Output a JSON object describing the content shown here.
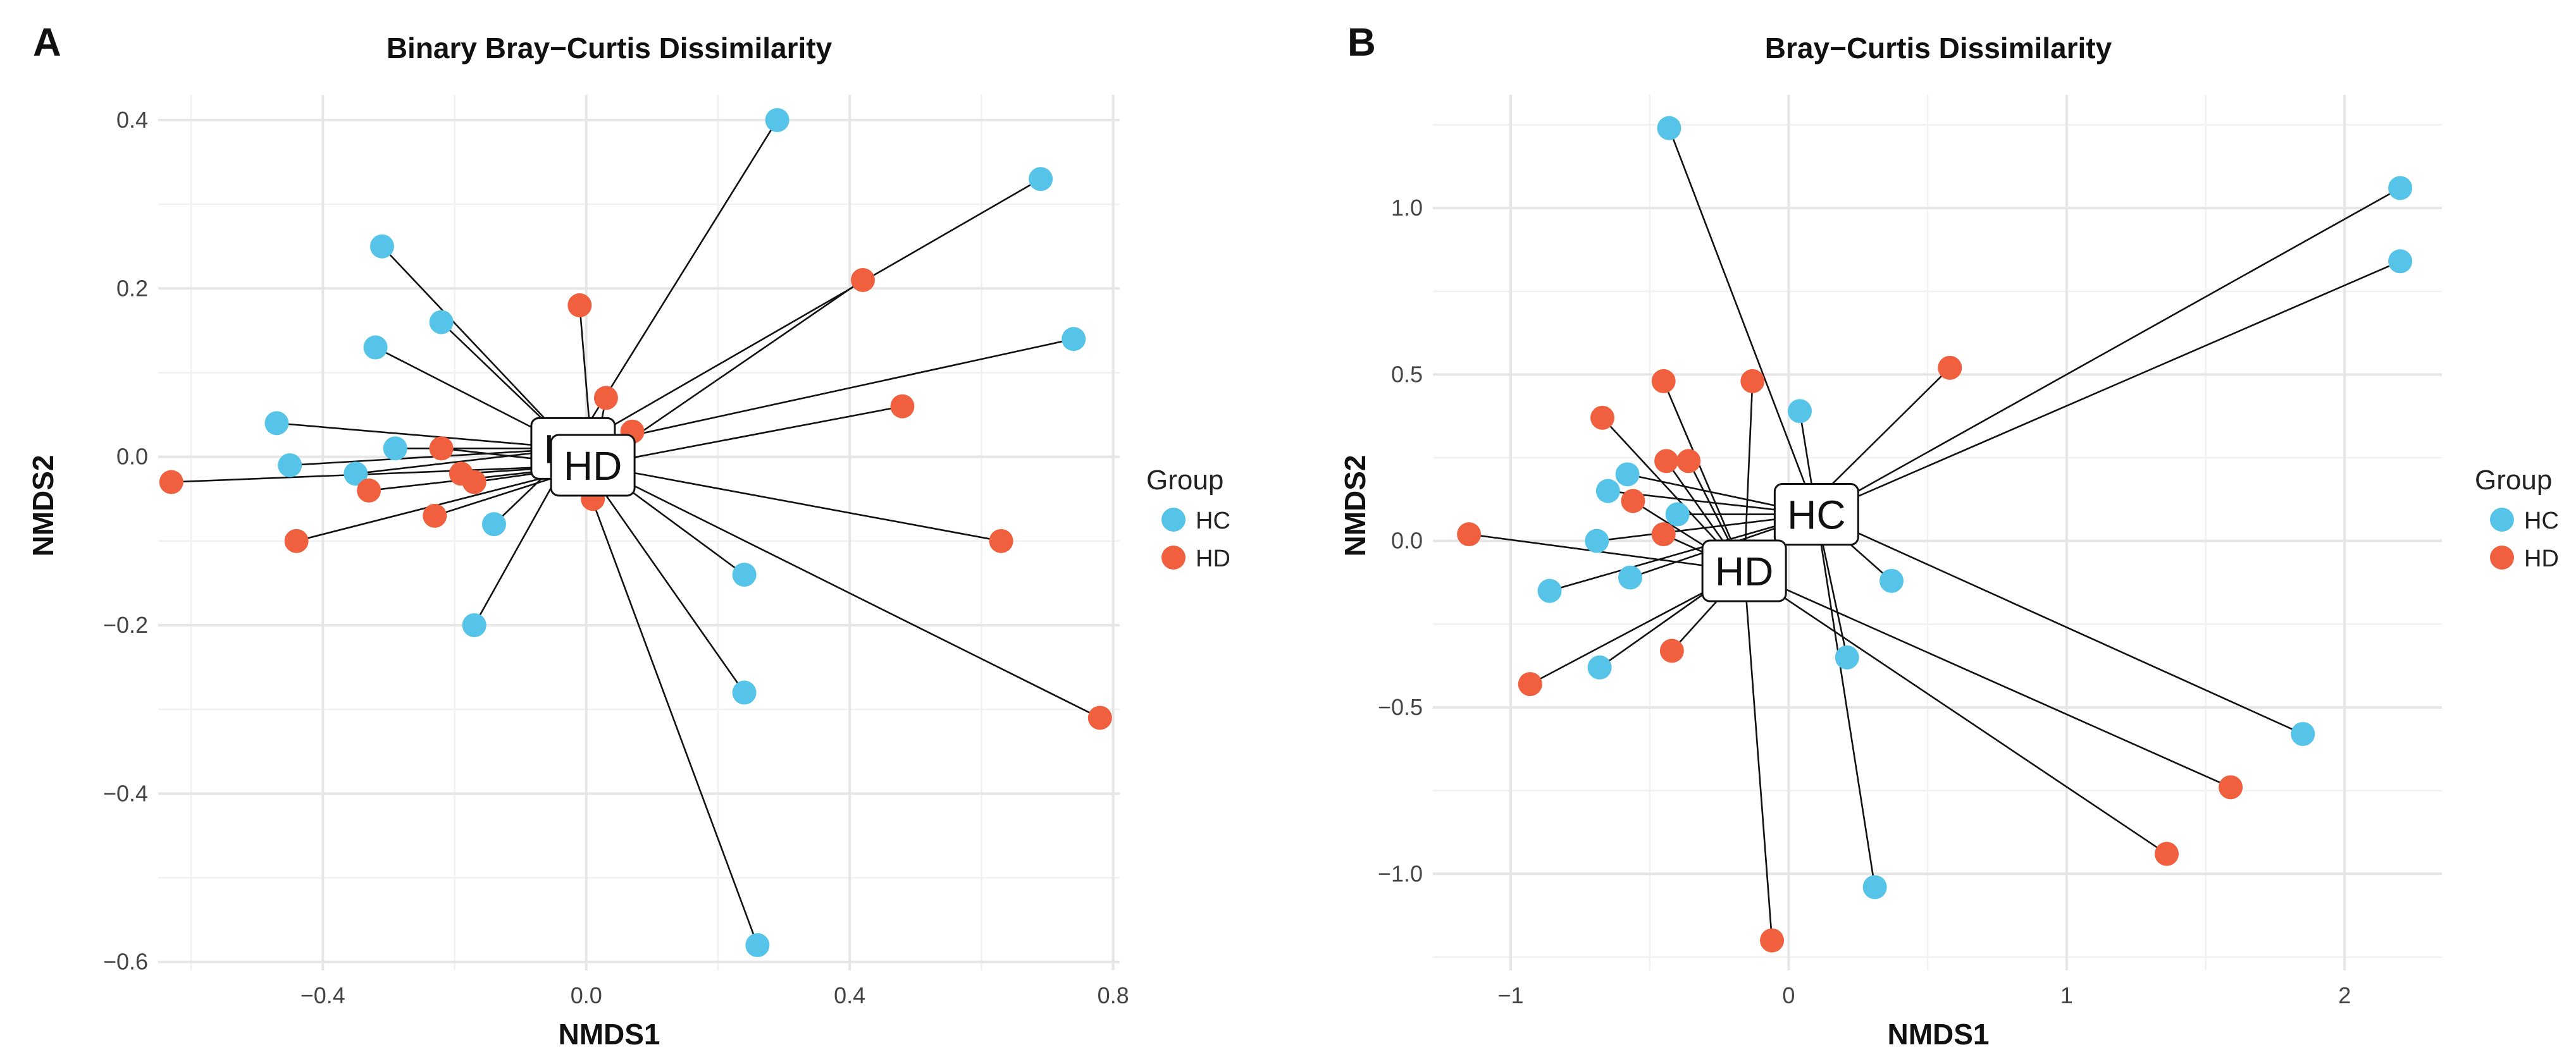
{
  "chart_data": [
    {
      "type": "scatter",
      "panel_label": "A",
      "title": "Binary Bray−Curtis Dissimilarity",
      "xlabel": "NMDS1",
      "ylabel": "NMDS2",
      "xlim": [
        -0.65,
        0.81
      ],
      "ylim": [
        -0.61,
        0.43
      ],
      "xticks": [
        -0.4,
        0.0,
        0.4,
        0.8
      ],
      "xtick_labels": [
        "−0.4",
        "0.0",
        "0.4",
        "0.8"
      ],
      "yticks": [
        -0.6,
        -0.4,
        -0.2,
        0.0,
        0.2,
        0.4
      ],
      "ytick_labels": [
        "−0.6",
        "−0.4",
        "−0.2",
        "0.0",
        "0.2",
        "0.4"
      ],
      "grid": true,
      "legend_title": "Group",
      "legend_position": "right",
      "series": [
        {
          "name": "HC",
          "color": "#56c4e8",
          "centroid": [
            -0.02,
            0.01
          ],
          "centroid_label": "HC",
          "points": [
            [
              0.29,
              0.4
            ],
            [
              0.69,
              0.33
            ],
            [
              0.74,
              0.14
            ],
            [
              -0.31,
              0.25
            ],
            [
              -0.22,
              0.16
            ],
            [
              -0.32,
              0.13
            ],
            [
              -0.47,
              0.04
            ],
            [
              -0.45,
              -0.01
            ],
            [
              -0.35,
              -0.02
            ],
            [
              -0.29,
              0.01
            ],
            [
              -0.14,
              -0.08
            ],
            [
              -0.17,
              -0.2
            ],
            [
              0.24,
              -0.14
            ],
            [
              0.24,
              -0.28
            ],
            [
              0.26,
              -0.58
            ]
          ]
        },
        {
          "name": "HD",
          "color": "#f0603f",
          "centroid": [
            0.01,
            -0.01
          ],
          "centroid_label": "HD",
          "points": [
            [
              -0.63,
              -0.03
            ],
            [
              -0.44,
              -0.1
            ],
            [
              -0.33,
              -0.04
            ],
            [
              -0.23,
              -0.07
            ],
            [
              -0.22,
              0.01
            ],
            [
              -0.19,
              -0.02
            ],
            [
              -0.17,
              -0.03
            ],
            [
              -0.01,
              0.18
            ],
            [
              0.03,
              0.07
            ],
            [
              0.07,
              0.03
            ],
            [
              0.01,
              -0.05
            ],
            [
              0.42,
              0.21
            ],
            [
              0.48,
              0.06
            ],
            [
              0.63,
              -0.1
            ],
            [
              0.78,
              -0.31
            ]
          ]
        }
      ]
    },
    {
      "type": "scatter",
      "panel_label": "B",
      "title": "Bray−Curtis Dissimilarity",
      "xlabel": "NMDS1",
      "ylabel": "NMDS2",
      "xlim": [
        -1.28,
        2.35
      ],
      "ylim": [
        -1.29,
        1.34
      ],
      "xticks": [
        -1,
        0,
        1,
        2
      ],
      "xtick_labels": [
        "−1",
        "0",
        "1",
        "2"
      ],
      "yticks": [
        -1.0,
        -0.5,
        0.0,
        0.5,
        1.0
      ],
      "ytick_labels": [
        "−1.0",
        "−0.5",
        "0.0",
        "0.5",
        "1.0"
      ],
      "grid": true,
      "legend_title": "Group",
      "legend_position": "right",
      "series": [
        {
          "name": "HC",
          "color": "#56c4e8",
          "centroid": [
            0.1,
            0.08
          ],
          "centroid_label": "HC",
          "points": [
            [
              -0.43,
              1.24
            ],
            [
              2.2,
              1.06
            ],
            [
              2.2,
              0.84
            ],
            [
              0.04,
              0.39
            ],
            [
              -0.58,
              0.2
            ],
            [
              -0.65,
              0.15
            ],
            [
              -0.4,
              0.08
            ],
            [
              -0.69,
              0.0
            ],
            [
              -0.57,
              -0.11
            ],
            [
              -0.86,
              -0.15
            ],
            [
              0.37,
              -0.12
            ],
            [
              0.21,
              -0.35
            ],
            [
              -0.68,
              -0.38
            ],
            [
              1.85,
              -0.58
            ],
            [
              0.31,
              -1.04
            ]
          ]
        },
        {
          "name": "HD",
          "color": "#f0603f",
          "centroid": [
            -0.16,
            -0.09
          ],
          "centroid_label": "HD",
          "points": [
            [
              -1.15,
              0.02
            ],
            [
              -0.67,
              0.37
            ],
            [
              -0.45,
              0.48
            ],
            [
              -0.13,
              0.48
            ],
            [
              0.58,
              0.52
            ],
            [
              -0.44,
              0.24
            ],
            [
              -0.36,
              0.24
            ],
            [
              -0.56,
              0.12
            ],
            [
              -0.45,
              0.02
            ],
            [
              -0.42,
              -0.33
            ],
            [
              -0.93,
              -0.43
            ],
            [
              1.36,
              -0.94
            ],
            [
              1.59,
              -0.74
            ],
            [
              -0.06,
              -1.2
            ]
          ]
        }
      ]
    }
  ]
}
